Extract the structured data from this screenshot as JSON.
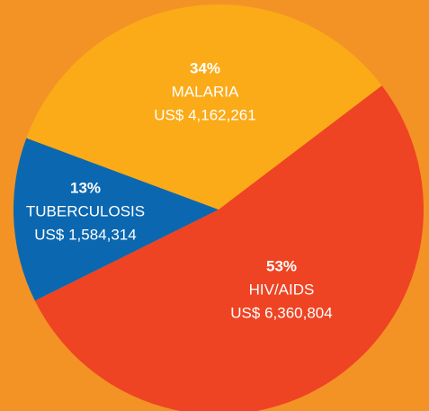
{
  "chart_data": {
    "type": "pie",
    "categories": [
      "HIV/AIDS",
      "TUBERCULOSIS",
      "MALARIA"
    ],
    "values": [
      53,
      13,
      34
    ],
    "value_labels": [
      "53%",
      "13%",
      "34%"
    ],
    "amounts": [
      "US$ 6,360,804",
      "US$ 1,584,314",
      "US$ 4,162,261"
    ],
    "colors": [
      "#ee4423",
      "#0b68b0",
      "#fbab18"
    ]
  }
}
